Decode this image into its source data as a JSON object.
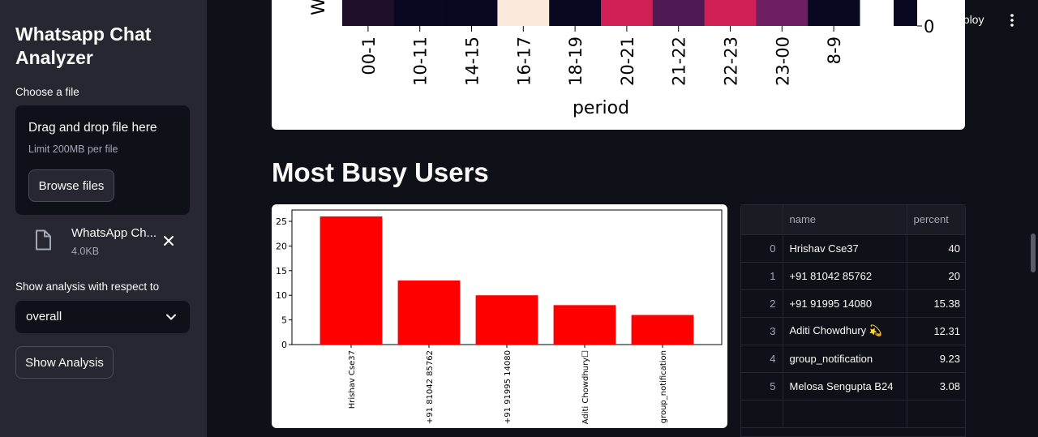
{
  "sidebar": {
    "title": "Whatsapp Chat Analyzer",
    "uploader_label": "Choose a file",
    "dropzone_title": "Drag and drop file here",
    "dropzone_limit": "Limit 200MB per file",
    "browse_label": "Browse files",
    "file_name": "WhatsApp Ch...",
    "file_size": "4.0KB",
    "analysis_label": "Show analysis with respect to",
    "select_value": "overall",
    "show_button": "Show Analysis"
  },
  "header": {
    "deploy_label": "eploy"
  },
  "heatmap": {
    "ylabel_fragment": "W",
    "xlabel": "period",
    "colorbar_tick": "0",
    "columns": [
      "00-1",
      "10-11",
      "14-15",
      "16-17",
      "18-19",
      "20-21",
      "21-22",
      "22-23",
      "23-00",
      "8-9"
    ],
    "colors": [
      "#1f0f2b",
      "#080821",
      "#070720",
      "#faeadb",
      "#080821",
      "#cf1f55",
      "#4f1a54",
      "#cf1f55",
      "#6d1f62",
      "#080821"
    ],
    "colorbar_color": "#070720"
  },
  "main": {
    "section_title": "Most Busy Users"
  },
  "chart_data": {
    "type": "bar",
    "categories": [
      "Hrishav Cse37",
      "+91 81042 85762",
      "+91 91995 14080",
      "Aditi Chowdhury☐",
      "group_notification"
    ],
    "values": [
      26,
      13,
      10,
      8,
      6
    ],
    "ylim": [
      0,
      27.3
    ],
    "yticks": [
      "0",
      "5",
      "10",
      "15",
      "20",
      "25"
    ],
    "bar_color": "#ff0000",
    "xlabel": "",
    "ylabel": ""
  },
  "table": {
    "columns": [
      "name",
      "percent"
    ],
    "rows": [
      {
        "index": "0",
        "name": "Hrishav Cse37",
        "percent": "40"
      },
      {
        "index": "1",
        "name": "+91 81042 85762",
        "percent": "20"
      },
      {
        "index": "2",
        "name": "+91 91995 14080",
        "percent": "15.38"
      },
      {
        "index": "3",
        "name": "Aditi Chowdhury 💫",
        "percent": "12.31"
      },
      {
        "index": "4",
        "name": "group_notification",
        "percent": "9.23"
      },
      {
        "index": "5",
        "name": "Melosa Sengupta B24",
        "percent": "3.08"
      }
    ]
  }
}
